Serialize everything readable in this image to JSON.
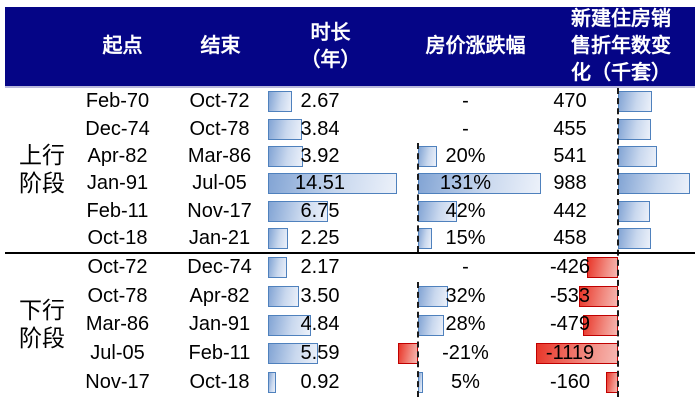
{
  "header": {
    "bg_color": "#050586",
    "text_color": "#ffffff",
    "col_start": "起点",
    "col_end": "结束",
    "col_duration": "时长\n（年）",
    "col_price": "房价涨跌幅",
    "col_sales": "新建住房销\n售折年数变\n化（千套）"
  },
  "colors": {
    "blue_bar_border": "#4f81bd",
    "blue_bar_fill_dark": "#82a4d4",
    "blue_bar_fill_light": "#ecf1fa",
    "red_bar_border": "#c00000",
    "red_bar_fill_dark": "#e93528",
    "red_bar_fill_light": "#f6b8b2",
    "axis_color": "#1a1a1a"
  },
  "groups": [
    {
      "label": "上行\n阶段",
      "rows": [
        {
          "start": "Feb-70",
          "end": "Oct-72",
          "duration": 2.67,
          "duration_label": "2.67",
          "price": null,
          "price_label": "-",
          "sales": 470,
          "sales_label": "470"
        },
        {
          "start": "Dec-74",
          "end": "Oct-78",
          "duration": 3.84,
          "duration_label": "3.84",
          "price": null,
          "price_label": "-",
          "sales": 455,
          "sales_label": "455"
        },
        {
          "start": "Apr-82",
          "end": "Mar-86",
          "duration": 3.92,
          "duration_label": "3.92",
          "price": 20,
          "price_label": "20%",
          "sales": 541,
          "sales_label": "541"
        },
        {
          "start": "Jan-91",
          "end": "Jul-05",
          "duration": 14.51,
          "duration_label": "14.51",
          "price": 131,
          "price_label": "131%",
          "sales": 988,
          "sales_label": "988"
        },
        {
          "start": "Feb-11",
          "end": "Nov-17",
          "duration": 6.75,
          "duration_label": "6.75",
          "price": 42,
          "price_label": "42%",
          "sales": 442,
          "sales_label": "442"
        },
        {
          "start": "Oct-18",
          "end": "Jan-21",
          "duration": 2.25,
          "duration_label": "2.25",
          "price": 15,
          "price_label": "15%",
          "sales": 458,
          "sales_label": "458"
        }
      ]
    },
    {
      "label": "下行\n阶段",
      "rows": [
        {
          "start": "Oct-72",
          "end": "Dec-74",
          "duration": 2.17,
          "duration_label": "2.17",
          "price": null,
          "price_label": "-",
          "sales": -426,
          "sales_label": "-426"
        },
        {
          "start": "Oct-78",
          "end": "Apr-82",
          "duration": 3.5,
          "duration_label": "3.50",
          "price": 32,
          "price_label": "32%",
          "sales": -533,
          "sales_label": "-533"
        },
        {
          "start": "Mar-86",
          "end": "Jan-91",
          "duration": 4.84,
          "duration_label": "4.84",
          "price": 28,
          "price_label": "28%",
          "sales": -479,
          "sales_label": "-479"
        },
        {
          "start": "Jul-05",
          "end": "Feb-11",
          "duration": 5.59,
          "duration_label": "5.59",
          "price": -21,
          "price_label": "-21%",
          "sales": -1119,
          "sales_label": "-1119"
        },
        {
          "start": "Nov-17",
          "end": "Oct-18",
          "duration": 0.92,
          "duration_label": "0.92",
          "price": 5,
          "price_label": "5%",
          "sales": -160,
          "sales_label": "-160"
        }
      ]
    }
  ],
  "chart_data": {
    "type": "table",
    "title": "",
    "columns": [
      "阶段",
      "起点",
      "结束",
      "时长（年）",
      "房价涨跌幅",
      "新建住房销售折年数变化（千套）"
    ],
    "rows": [
      [
        "上行阶段",
        "Feb-70",
        "Oct-72",
        2.67,
        null,
        470
      ],
      [
        "上行阶段",
        "Dec-74",
        "Oct-78",
        3.84,
        null,
        455
      ],
      [
        "上行阶段",
        "Apr-82",
        "Mar-86",
        3.92,
        "20%",
        541
      ],
      [
        "上行阶段",
        "Jan-91",
        "Jul-05",
        14.51,
        "131%",
        988
      ],
      [
        "上行阶段",
        "Feb-11",
        "Nov-17",
        6.75,
        "42%",
        442
      ],
      [
        "上行阶段",
        "Oct-18",
        "Jan-21",
        2.25,
        "15%",
        458
      ],
      [
        "下行阶段",
        "Oct-72",
        "Dec-74",
        2.17,
        null,
        -426
      ],
      [
        "下行阶段",
        "Oct-78",
        "Apr-82",
        3.5,
        "32%",
        -533
      ],
      [
        "下行阶段",
        "Mar-86",
        "Jan-91",
        4.84,
        "28%",
        -479
      ],
      [
        "下行阶段",
        "Jul-05",
        "Feb-11",
        5.59,
        "-21%",
        -1119
      ],
      [
        "下行阶段",
        "Nov-17",
        "Oct-18",
        0.92,
        "5%",
        -160
      ]
    ],
    "notes": "Excel-style data-bar table: blue bars = positive values, red bars = negative values; dashed vertical lines are the bar zero-axes for 房价涨跌幅 and 新建住房销售折年数变化 columns."
  }
}
